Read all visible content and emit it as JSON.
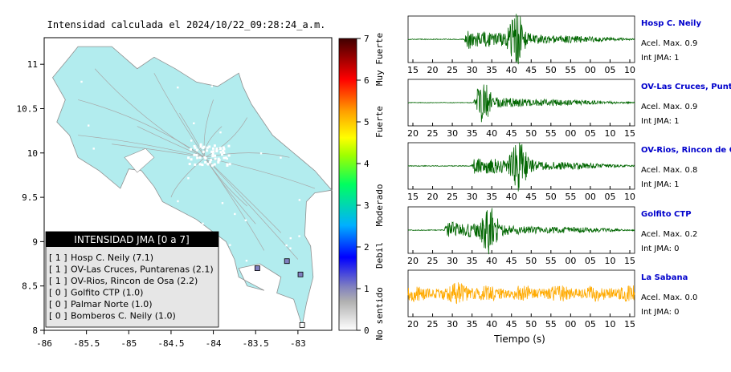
{
  "map": {
    "title": "Intensidad calculada el 2024/10/22_09:28:24_a.m.",
    "x_ticks": [
      "-86",
      "-85.5",
      "-85",
      "-84.5",
      "-84",
      "-83.5",
      "-83"
    ],
    "y_ticks": [
      "11",
      "10.5",
      "10",
      "9.5",
      "9",
      "8.5",
      "8"
    ],
    "xlim": [
      -86,
      -82.6
    ],
    "ylim": [
      8,
      11.3
    ],
    "land_color": "#b2ecee",
    "legend": {
      "title": "INTENSIDAD JMA [0 a 7]",
      "items": [
        {
          "int": "[ 1 ]",
          "name": "Hosp C. Neily (7.1)"
        },
        {
          "int": "[ 1 ]",
          "name": "OV-Las Cruces, Puntarenas (2.1)"
        },
        {
          "int": "[ 1 ]",
          "name": "OV-Rios, Rincon de Osa (2.2)"
        },
        {
          "int": "[ 0 ]",
          "name": "Golfito CTP (1.0)"
        },
        {
          "int": "[ 0 ]",
          "name": "Palmar Norte (1.0)"
        },
        {
          "int": "[ 0 ]",
          "name": "Bomberos C. Neily (1.0)"
        }
      ]
    },
    "stations": [
      {
        "lon": -83.13,
        "lat": 8.78,
        "intensity": 1
      },
      {
        "lon": -82.97,
        "lat": 8.63,
        "intensity": 1
      },
      {
        "lon": -83.48,
        "lat": 8.7,
        "intensity": 1
      },
      {
        "lon": -82.95,
        "lat": 8.06,
        "intensity": 0
      }
    ]
  },
  "colorbar": {
    "ticks": [
      "7",
      "6",
      "5",
      "4",
      "3",
      "2",
      "1",
      "0"
    ],
    "labels": [
      "Muy Fuerte",
      "Fuerte",
      "Moderado",
      "Debil",
      "No sentido"
    ],
    "range": [
      0,
      7
    ]
  },
  "chart_data": [
    {
      "type": "line",
      "station": "Hosp C. Neily",
      "accel_label": "Acel. Max. 0.9",
      "int_label": "Int JMA: 1",
      "color": "#006600",
      "x_ticks": [
        "15",
        "20",
        "25",
        "30",
        "35",
        "40",
        "45",
        "50",
        "55",
        "00",
        "05",
        "10"
      ],
      "onset": 0.25,
      "peak": 0.48,
      "amp": 1.0
    },
    {
      "type": "line",
      "station": "OV-Las Cruces, Puntar",
      "accel_label": "Acel. Max. 0.9",
      "int_label": "Int JMA: 1",
      "color": "#006600",
      "x_ticks": [
        "20",
        "25",
        "30",
        "35",
        "40",
        "45",
        "50",
        "55",
        "00",
        "05",
        "10",
        "15"
      ],
      "onset": 0.29,
      "peak": 0.33,
      "amp": 0.7
    },
    {
      "type": "line",
      "station": "OV-Rios, Rincon de Os",
      "accel_label": "Acel. Max. 0.8",
      "int_label": "Int JMA: 1",
      "color": "#006600",
      "x_ticks": [
        "15",
        "20",
        "25",
        "30",
        "35",
        "40",
        "45",
        "50",
        "55",
        "00",
        "05",
        "10"
      ],
      "onset": 0.28,
      "peak": 0.49,
      "amp": 0.95
    },
    {
      "type": "line",
      "station": "Golfito CTP",
      "accel_label": "Acel. Max. 0.2",
      "int_label": "Int JMA: 0",
      "color": "#006600",
      "x_ticks": [
        "20",
        "25",
        "30",
        "35",
        "40",
        "45",
        "50",
        "55",
        "00",
        "05",
        "10",
        "15"
      ],
      "onset": 0.16,
      "peak": 0.36,
      "amp": 0.9
    },
    {
      "type": "line",
      "station": "La Sabana",
      "accel_label": "Acel. Max. 0.0",
      "int_label": "Int JMA: 0",
      "color": "#ffaa00",
      "x_ticks": [
        "20",
        "25",
        "30",
        "35",
        "40",
        "45",
        "50",
        "55",
        "00",
        "05",
        "10",
        "15"
      ],
      "onset": 0.0,
      "peak": 0.23,
      "amp": 0.55,
      "noise": true
    }
  ],
  "xlabel": "Tiempo (s)"
}
